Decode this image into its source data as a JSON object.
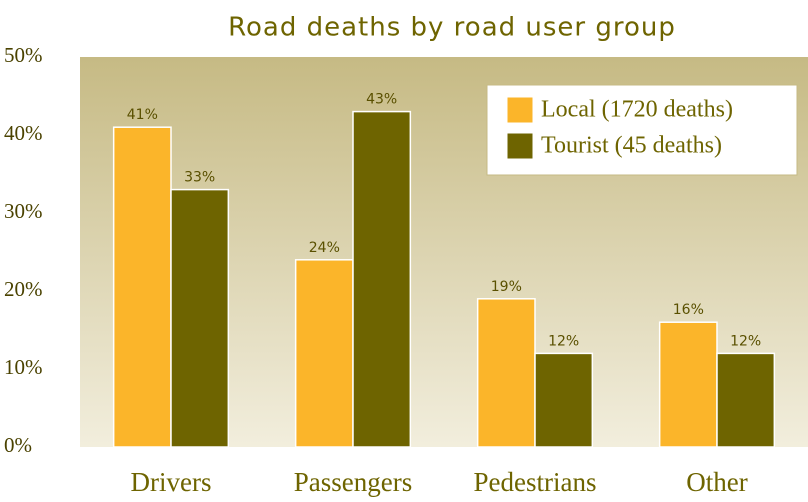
{
  "chart_data": {
    "type": "bar",
    "title": "Road deaths by road user group",
    "categories": [
      "Drivers",
      "Passengers",
      "Pedestrians",
      "Other"
    ],
    "series": [
      {
        "name": "Local (1720 deaths)",
        "color": "#fbb52a",
        "values": [
          41,
          24,
          19,
          16
        ],
        "value_labels": [
          "41%",
          "24%",
          "19%",
          "16%"
        ]
      },
      {
        "name": "Tourist (45 deaths)",
        "color": "#6e6400",
        "values": [
          33,
          43,
          12,
          12
        ],
        "value_labels": [
          "33%",
          "43%",
          "12%",
          "12%"
        ]
      }
    ],
    "ylim": [
      0,
      50
    ],
    "yticks": [
      {
        "value": 0,
        "label": "0%"
      },
      {
        "value": 10,
        "label": "10%"
      },
      {
        "value": 20,
        "label": "20%"
      },
      {
        "value": 30,
        "label": "30%"
      },
      {
        "value": 40,
        "label": "40%"
      },
      {
        "value": 50,
        "label": "50%"
      }
    ],
    "legend": "upper right"
  }
}
